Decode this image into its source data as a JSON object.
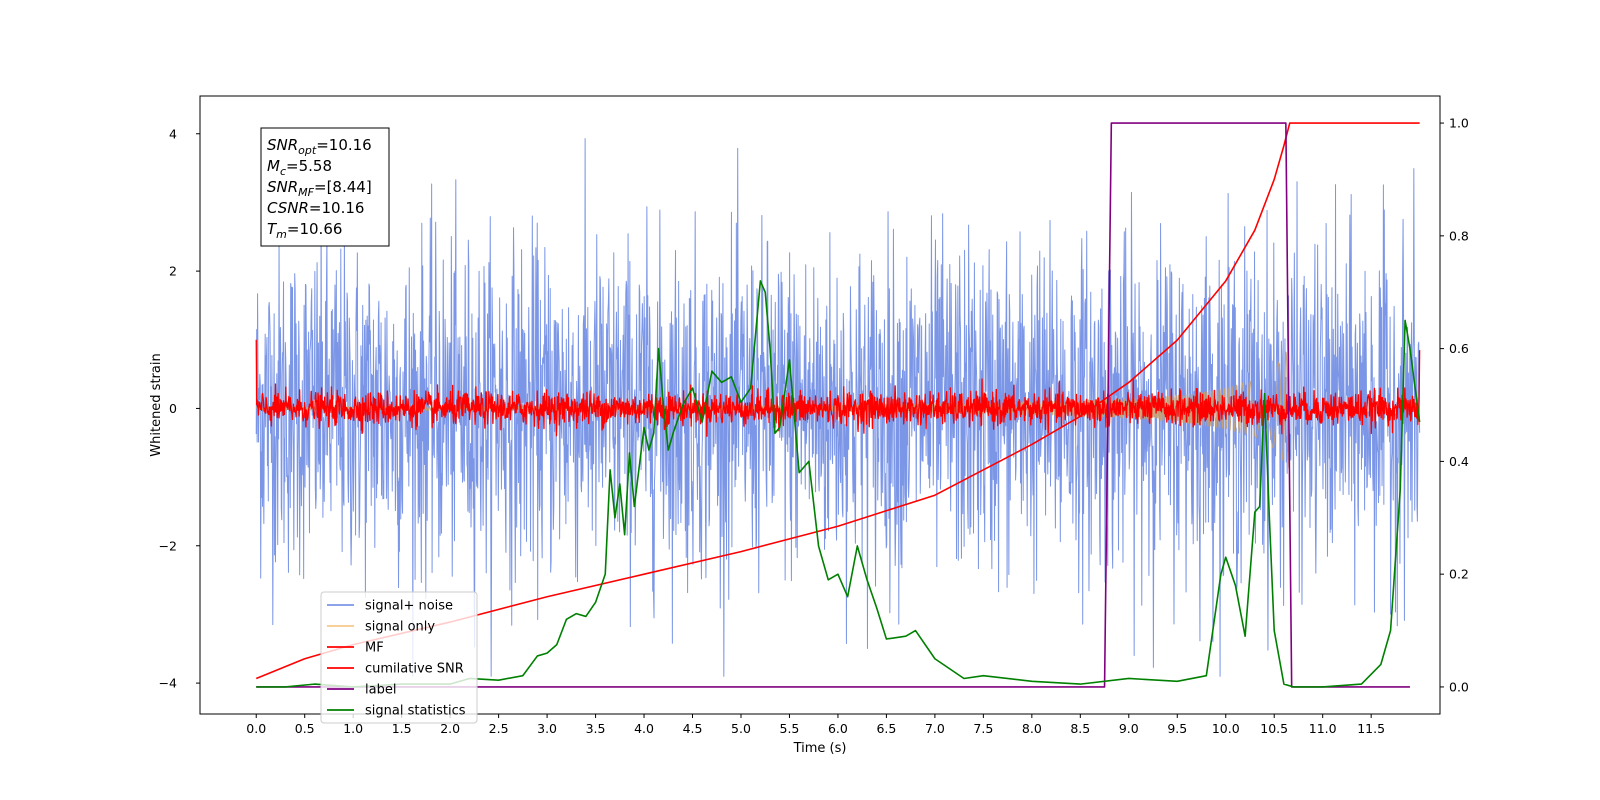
{
  "chart_data": {
    "type": "line",
    "xlabel": "Time (s)",
    "ylabel": "Whitened strain",
    "xlim": [
      -0.58,
      12.21
    ],
    "ylim_left": [
      -4.45,
      4.55
    ],
    "ylim_right": [
      -0.048,
      1.048
    ],
    "x_ticks": [
      0.0,
      0.5,
      1.0,
      1.5,
      2.0,
      2.5,
      3.0,
      3.5,
      4.0,
      4.5,
      5.0,
      5.5,
      6.0,
      6.5,
      7.0,
      7.5,
      8.0,
      8.5,
      9.0,
      9.5,
      10.0,
      10.5,
      11.0,
      11.5
    ],
    "x_tick_labels": [
      "0.0",
      "0.5",
      "1.0",
      "1.5",
      "2.0",
      "2.5",
      "3.0",
      "3.5",
      "4.0",
      "4.5",
      "5.0",
      "5.5",
      "6.0",
      "6.5",
      "7.0",
      "7.5",
      "8.0",
      "8.5",
      "9.0",
      "9.5",
      "10.0",
      "10.5",
      "11.0",
      "11.5"
    ],
    "y_ticks_left": [
      -4,
      -2,
      0,
      2,
      4
    ],
    "y_tick_labels_left": [
      "−4",
      "−2",
      "0",
      "2",
      "4"
    ],
    "y_ticks_right": [
      0.0,
      0.2,
      0.4,
      0.6,
      0.8,
      1.0
    ],
    "y_tick_labels_right": [
      "0.0",
      "0.2",
      "0.4",
      "0.6",
      "0.8",
      "1.0"
    ],
    "legend": {
      "placement": "lower-left",
      "entries": [
        "signal+ noise",
        "signal only",
        "MF",
        "cumilative SNR",
        "label",
        "signal statistics"
      ]
    },
    "annotation": {
      "lines": [
        {
          "var": "SNR",
          "sub": "opt",
          "value": "=10.16"
        },
        {
          "var": "M",
          "sub": "c",
          "value": "=5.58"
        },
        {
          "var": "SNR",
          "sub": "MF",
          "value": "=[8.44]"
        },
        {
          "var": "CSNR",
          "sub": "",
          "value": "=10.16"
        },
        {
          "var": "T",
          "sub": "m",
          "value": "=10.66"
        }
      ]
    },
    "series": [
      {
        "name": "signal+ noise",
        "axis": "left",
        "color": "#7b96e6",
        "kind": "noise",
        "x_range": [
          0.0,
          12.0
        ],
        "typical_amplitude": 1.2,
        "peak_max": 4.15,
        "peak_min": -3.9
      },
      {
        "name": "signal only",
        "axis": "left",
        "color": "#f5c98a",
        "kind": "chirp",
        "x_range": [
          0.0,
          10.66
        ],
        "envelope": [
          [
            0.0,
            0.02
          ],
          [
            6.0,
            0.05
          ],
          [
            8.0,
            0.1
          ],
          [
            9.0,
            0.15
          ],
          [
            9.5,
            0.2
          ],
          [
            10.0,
            0.3
          ],
          [
            10.3,
            0.42
          ],
          [
            10.5,
            0.58
          ],
          [
            10.66,
            0.9
          ]
        ]
      },
      {
        "name": "MF",
        "axis": "left",
        "color": "#ff0000",
        "kind": "noise",
        "x_range": [
          0.0,
          12.0
        ],
        "typical_amplitude": 0.12,
        "start_value": 1.0,
        "end_value": 0.85
      },
      {
        "name": "cumilative SNR",
        "axis": "right",
        "color": "#ff0000",
        "kind": "line",
        "x": [
          0.0,
          0.5,
          1.0,
          2.0,
          3.0,
          4.0,
          5.0,
          6.0,
          7.0,
          8.0,
          8.5,
          9.0,
          9.5,
          10.0,
          10.3,
          10.5,
          10.6,
          10.66,
          12.0
        ],
        "y": [
          0.015,
          0.05,
          0.075,
          0.115,
          0.16,
          0.2,
          0.24,
          0.285,
          0.34,
          0.43,
          0.48,
          0.54,
          0.615,
          0.72,
          0.81,
          0.9,
          0.96,
          1.0,
          1.0
        ]
      },
      {
        "name": "label",
        "axis": "right",
        "color": "#800080",
        "kind": "step",
        "x": [
          0.0,
          8.75,
          8.82,
          10.62,
          10.68,
          11.9
        ],
        "y": [
          0.0,
          0.0,
          1.0,
          1.0,
          0.0,
          0.0
        ]
      },
      {
        "name": "signal statistics",
        "axis": "right",
        "color": "#008000",
        "kind": "line",
        "x": [
          0.0,
          0.3,
          0.6,
          1.0,
          1.5,
          2.0,
          2.2,
          2.5,
          2.75,
          2.9,
          3.0,
          3.1,
          3.2,
          3.3,
          3.4,
          3.5,
          3.6,
          3.65,
          3.7,
          3.75,
          3.8,
          3.85,
          3.9,
          4.0,
          4.05,
          4.1,
          4.15,
          4.2,
          4.25,
          4.3,
          4.4,
          4.5,
          4.6,
          4.7,
          4.8,
          4.9,
          5.0,
          5.1,
          5.2,
          5.25,
          5.3,
          5.35,
          5.4,
          5.5,
          5.6,
          5.7,
          5.8,
          5.9,
          6.0,
          6.1,
          6.2,
          6.3,
          6.4,
          6.5,
          6.7,
          6.8,
          7.0,
          7.3,
          7.5,
          8.0,
          8.5,
          9.0,
          9.5,
          9.8,
          9.95,
          10.0,
          10.1,
          10.2,
          10.3,
          10.35,
          10.4,
          10.45,
          10.5,
          10.6,
          10.7,
          11.0,
          11.4,
          11.6,
          11.7,
          11.8,
          11.85,
          11.9,
          12.0
        ],
        "y": [
          0.0,
          0.0,
          0.005,
          0.0,
          0.005,
          0.005,
          0.015,
          0.012,
          0.02,
          0.055,
          0.06,
          0.075,
          0.12,
          0.13,
          0.125,
          0.15,
          0.2,
          0.385,
          0.3,
          0.36,
          0.27,
          0.415,
          0.32,
          0.46,
          0.42,
          0.45,
          0.6,
          0.5,
          0.42,
          0.45,
          0.5,
          0.53,
          0.47,
          0.56,
          0.54,
          0.55,
          0.505,
          0.53,
          0.72,
          0.7,
          0.6,
          0.45,
          0.46,
          0.58,
          0.38,
          0.4,
          0.25,
          0.19,
          0.2,
          0.16,
          0.25,
          0.19,
          0.14,
          0.085,
          0.09,
          0.1,
          0.05,
          0.015,
          0.02,
          0.01,
          0.005,
          0.015,
          0.01,
          0.02,
          0.2,
          0.23,
          0.18,
          0.09,
          0.31,
          0.32,
          0.52,
          0.3,
          0.1,
          0.005,
          0.0,
          0.0,
          0.005,
          0.04,
          0.1,
          0.35,
          0.65,
          0.6,
          0.47
        ]
      }
    ]
  }
}
